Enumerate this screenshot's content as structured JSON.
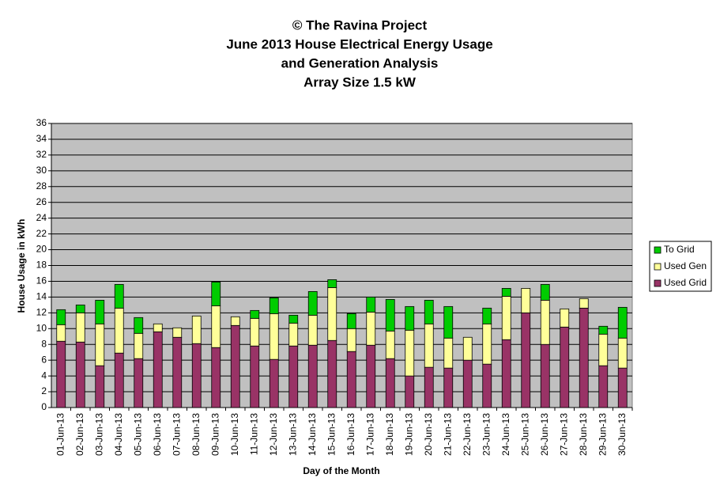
{
  "chart_data": {
    "type": "stacked_bar",
    "title": [
      "© The Ravina Project",
      "June 2013 House Electrical Energy Usage",
      "and Generation Analysis",
      "Array Size 1.5 kW"
    ],
    "x_label": "Day of the Month",
    "y_label": "House Usage in kWh",
    "categories": [
      "01-Jun-13",
      "02-Jun-13",
      "03-Jun-13",
      "04-Jun-13",
      "05-Jun-13",
      "06-Jun-13",
      "07-Jun-13",
      "08-Jun-13",
      "09-Jun-13",
      "10-Jun-13",
      "11-Jun-13",
      "12-Jun-13",
      "13-Jun-13",
      "14-Jun-13",
      "15-Jun-13",
      "16-Jun-13",
      "17-Jun-13",
      "18-Jun-13",
      "19-Jun-13",
      "20-Jun-13",
      "21-Jun-13",
      "22-Jun-13",
      "23-Jun-13",
      "24-Jun-13",
      "25-Jun-13",
      "26-Jun-13",
      "27-Jun-13",
      "28-Jun-13",
      "29-Jun-13",
      "30-Jun-13"
    ],
    "series": [
      {
        "name": "Used Grid",
        "color": "#993366",
        "values": [
          8.4,
          8.3,
          5.3,
          6.9,
          6.2,
          9.6,
          8.9,
          8.1,
          7.6,
          10.4,
          7.8,
          6.1,
          7.8,
          7.9,
          8.5,
          7.1,
          7.9,
          6.2,
          4.0,
          5.1,
          5.0,
          6.0,
          5.5,
          8.6,
          12.0,
          8.0,
          10.2,
          12.6,
          5.3,
          5.0
        ]
      },
      {
        "name": "Used Gen",
        "color": "#ffff99",
        "values": [
          2.1,
          3.7,
          5.3,
          5.7,
          3.2,
          1.0,
          1.2,
          3.5,
          5.3,
          1.1,
          3.5,
          5.8,
          2.9,
          3.8,
          6.7,
          2.9,
          4.2,
          3.5,
          5.8,
          5.5,
          3.8,
          2.9,
          5.1,
          5.5,
          3.1,
          5.6,
          2.3,
          1.2,
          4.0,
          3.8
        ]
      },
      {
        "name": "To Grid",
        "color": "#00cc00",
        "values": [
          1.9,
          1.0,
          3.0,
          3.0,
          2.0,
          0,
          0,
          0,
          3.0,
          0,
          1.0,
          2.0,
          1.0,
          3.0,
          1.0,
          1.9,
          1.9,
          4.0,
          3.0,
          3.0,
          4.0,
          0,
          2.0,
          1.0,
          0,
          2.0,
          0,
          0,
          1.0,
          3.9
        ]
      }
    ],
    "ylim": [
      0,
      36
    ],
    "yticks": [
      0,
      2,
      4,
      6,
      8,
      10,
      12,
      14,
      16,
      18,
      20,
      22,
      24,
      26,
      28,
      30,
      32,
      34,
      36
    ],
    "grid": true,
    "plot_background": "#c0c0c0",
    "legend": "right"
  }
}
